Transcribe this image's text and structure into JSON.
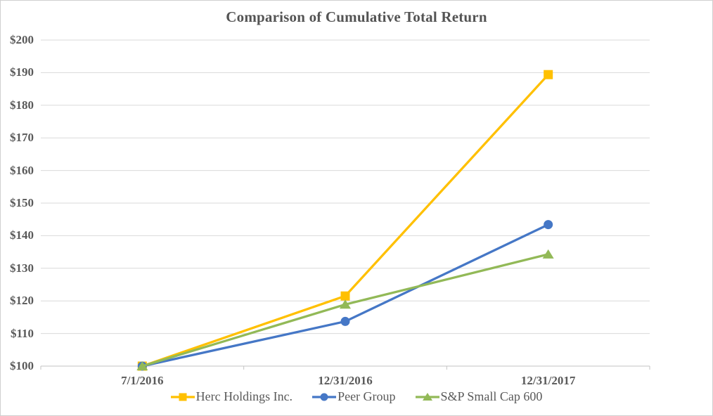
{
  "chart_data": {
    "type": "line",
    "title": "Comparison of Cumulative Total Return",
    "categories": [
      "7/1/2016",
      "12/31/2016",
      "12/31/2017"
    ],
    "series": [
      {
        "name": "Herc Holdings Inc.",
        "marker": "square",
        "color": "#FFC000",
        "values": [
          100,
          121.5,
          189.4
        ]
      },
      {
        "name": "Peer Group",
        "marker": "circle",
        "color": "#4577C6",
        "values": [
          100,
          113.7,
          143.4
        ]
      },
      {
        "name": "S&P Small Cap 600",
        "marker": "triangle",
        "color": "#92B957",
        "values": [
          100,
          118.9,
          134.3
        ]
      }
    ],
    "y_ticks": [
      {
        "label": "$200",
        "value": 200
      },
      {
        "label": "$190",
        "value": 190
      },
      {
        "label": "$180",
        "value": 180
      },
      {
        "label": "$170",
        "value": 170
      },
      {
        "label": "$160",
        "value": 160
      },
      {
        "label": "$150",
        "value": 150
      },
      {
        "label": "$140",
        "value": 140
      },
      {
        "label": "$130",
        "value": 130
      },
      {
        "label": "$120",
        "value": 120
      },
      {
        "label": "$110",
        "value": 110
      },
      {
        "label": "$100",
        "value": 100
      }
    ],
    "ylim": [
      100,
      200
    ],
    "grid": true,
    "legend_position": "bottom",
    "xlabel": "",
    "ylabel": "",
    "colors": {
      "text": "#595959",
      "gridline": "#D9D9D9",
      "axis": "#C3C3C3",
      "border": "#D0D0D0",
      "background": "#FFFFFF"
    }
  }
}
